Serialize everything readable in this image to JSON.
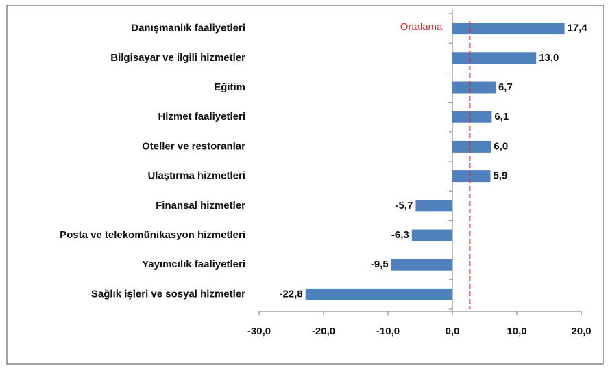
{
  "chart_data": {
    "type": "hbar",
    "categories": [
      "Danışmanlık faaliyetleri",
      "Bilgisayar ve ilgili hizmetler",
      "Eğitim",
      "Hizmet faaliyetleri",
      "Oteller ve restoranlar",
      "Ulaştırma hizmetleri",
      "Finansal hizmetler",
      "Posta ve telekomünikasyon hizmetleri",
      "Yayımcılık faaliyetleri",
      "Sağlık işleri ve sosyal hizmetler"
    ],
    "values": [
      17.4,
      13.0,
      6.7,
      6.1,
      6.0,
      5.9,
      -5.7,
      -6.3,
      -9.5,
      -22.8
    ],
    "value_labels": [
      "17,4",
      "13,0",
      "6,7",
      "6,1",
      "6,0",
      "5,9",
      "-5,7",
      "-6,3",
      "-9,5",
      "-22,8"
    ],
    "color": "#4f81bd",
    "xlim": [
      -30,
      20
    ],
    "xticks": [
      {
        "value": -30,
        "label": "-30,0"
      },
      {
        "value": -20,
        "label": "-20,0"
      },
      {
        "value": -10,
        "label": "-10,0"
      },
      {
        "value": 0,
        "label": "0,0"
      },
      {
        "value": 10,
        "label": "10,0"
      },
      {
        "value": 20,
        "label": "20,0"
      }
    ],
    "reference_line": {
      "label": "Ortalama",
      "value": 2.7,
      "color": "#e0282e"
    }
  }
}
